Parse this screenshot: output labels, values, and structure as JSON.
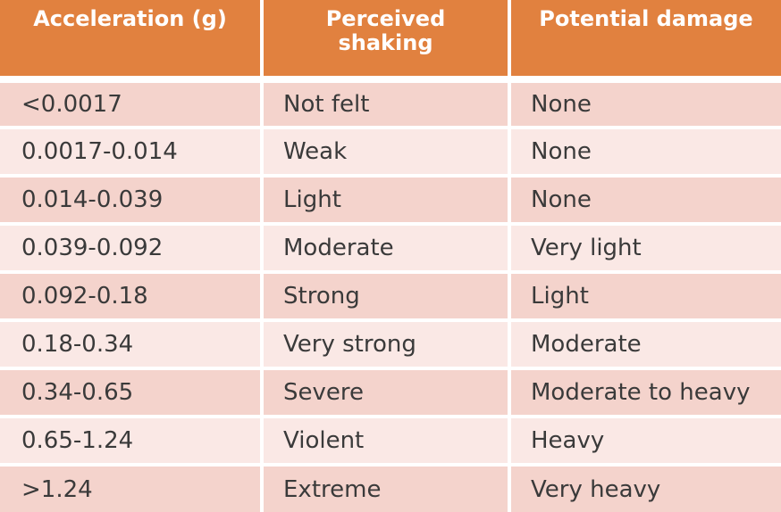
{
  "headers": {
    "col1": "Acceleration (g)",
    "col2_line1": "Perceived",
    "col2_line2": "shaking",
    "col3": "Potential damage"
  },
  "rows": [
    {
      "acceleration": "<0.0017",
      "shaking": "Not felt",
      "damage": "None"
    },
    {
      "acceleration": "0.0017-0.014",
      "shaking": "Weak",
      "damage": "None"
    },
    {
      "acceleration": "0.014-0.039",
      "shaking": "Light",
      "damage": "None"
    },
    {
      "acceleration": "0.039-0.092",
      "shaking": "Moderate",
      "damage": "Very light"
    },
    {
      "acceleration": "0.092-0.18",
      "shaking": "Strong",
      "damage": "Light"
    },
    {
      "acceleration": "0.18-0.34",
      "shaking": "Very strong",
      "damage": "Moderate"
    },
    {
      "acceleration": "0.34-0.65",
      "shaking": "Severe",
      "damage": "Moderate to heavy"
    },
    {
      "acceleration": "0.65-1.24",
      "shaking": "Violent",
      "damage": "Heavy"
    },
    {
      "acceleration": ">1.24",
      "shaking": "Extreme",
      "damage": "Very heavy"
    }
  ],
  "colors": {
    "header": "#e1813f",
    "row_dark": "#f4d3cc",
    "row_light": "#fae8e5",
    "text": "#3a3a3a"
  }
}
